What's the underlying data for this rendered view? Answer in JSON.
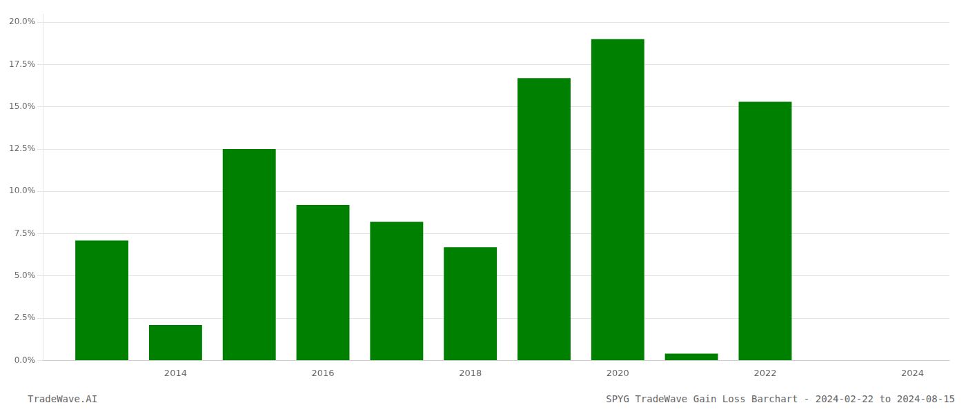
{
  "chart_data": {
    "type": "bar",
    "x": [
      2013,
      2014,
      2015,
      2016,
      2017,
      2018,
      2019,
      2020,
      2021,
      2022,
      2023
    ],
    "values": [
      0.071,
      0.021,
      0.125,
      0.092,
      0.082,
      0.067,
      0.167,
      0.19,
      0.004,
      0.153,
      0.0
    ],
    "color": "#008000",
    "xlim": [
      2012.2,
      2024.5
    ],
    "xticks": [
      2014,
      2016,
      2018,
      2020,
      2022,
      2024
    ],
    "ylim": [
      0,
      0.205
    ],
    "yticks": [
      {
        "value": 0.0,
        "label": "0.0%"
      },
      {
        "value": 0.025,
        "label": "2.5%"
      },
      {
        "value": 0.05,
        "label": "5.0%"
      },
      {
        "value": 0.075,
        "label": "7.5%"
      },
      {
        "value": 0.1,
        "label": "10.0%"
      },
      {
        "value": 0.125,
        "label": "12.5%"
      },
      {
        "value": 0.15,
        "label": "15.0%"
      },
      {
        "value": 0.175,
        "label": "17.5%"
      },
      {
        "value": 0.2,
        "label": "20.0%"
      }
    ],
    "grid": "y",
    "annotations": [
      "TradeWave.AI",
      "SPYG TradeWave Gain Loss Barchart - 2024-02-22 to 2024-08-15"
    ]
  }
}
